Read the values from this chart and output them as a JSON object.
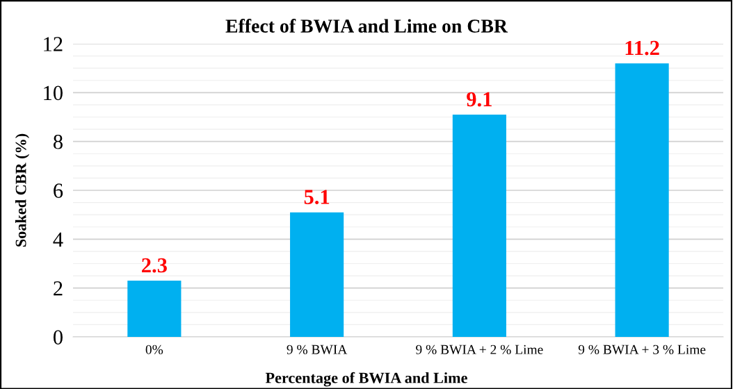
{
  "chart_data": {
    "type": "bar",
    "title": "Effect of BWIA and Lime on CBR",
    "xlabel": "Percentage of BWIA and Lime",
    "ylabel": "Soaked CBR (%)",
    "categories": [
      "0%",
      "9 % BWIA",
      "9 % BWIA + 2 % Lime",
      "9 % BWIA + 3 % Lime"
    ],
    "values": [
      2.3,
      5.1,
      9.1,
      11.2
    ],
    "color": "#00b0f0",
    "ylim": [
      0,
      12
    ],
    "yticks": [
      0,
      2,
      4,
      6,
      8,
      10,
      12
    ],
    "grid": "y",
    "data_labels": true,
    "legend": false
  }
}
